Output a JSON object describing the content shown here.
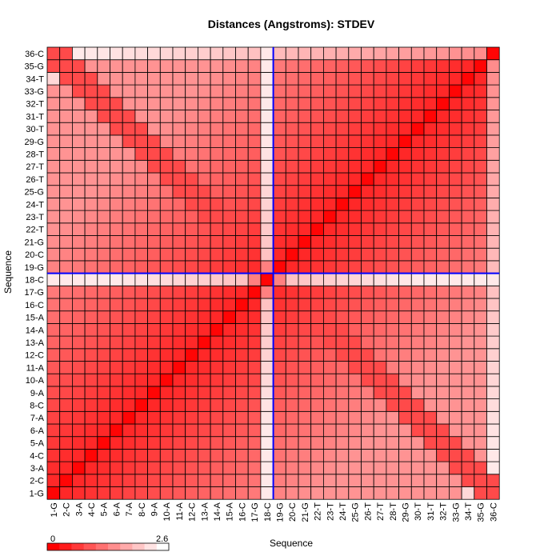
{
  "chart_data": {
    "type": "heatmap",
    "title": "Distances (Angstroms):  STDEV",
    "xlabel": "Sequence",
    "ylabel": "Sequence",
    "labels": [
      "1-G",
      "2-C",
      "3-A",
      "4-C",
      "5-A",
      "6-A",
      "7-A",
      "8-C",
      "9-A",
      "10-A",
      "11-A",
      "12-C",
      "13-A",
      "14-A",
      "15-A",
      "16-C",
      "17-G",
      "18-C",
      "19-G",
      "20-C",
      "21-G",
      "22-T",
      "23-T",
      "24-T",
      "25-G",
      "26-T",
      "27-T",
      "28-T",
      "29-G",
      "30-T",
      "31-T",
      "32-T",
      "33-G",
      "34-T",
      "35-G",
      "36-C"
    ],
    "color_range": [
      0,
      2.6
    ],
    "color_scale": [
      "#ff0000",
      "#ffffff"
    ],
    "highlight": {
      "row": "18-C",
      "col": "18-C",
      "color": "#0000ff"
    },
    "grid": true,
    "legend": {
      "placement": "bottom-left",
      "min_label": "0",
      "max_label": "2.6"
    },
    "value_model": "Approximate STDEV values: near 0 along the diagonal, rising with sequence separation (about 0.5-1.5 in the off-diagonal blocks); row and column 18-C are highest (about 1.9-2.5); values near the 36-C edge and the corners reach up to about 2.4."
  }
}
